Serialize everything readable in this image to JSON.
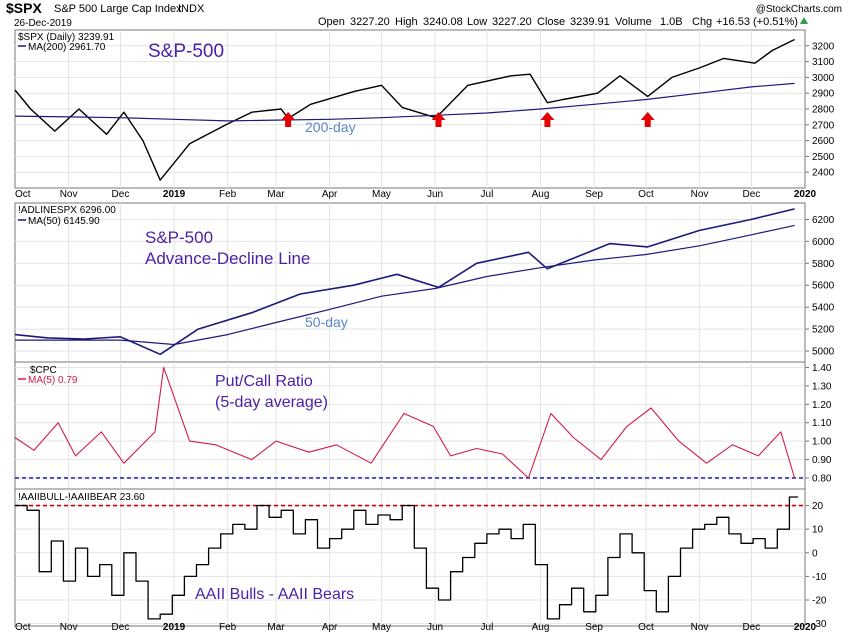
{
  "header": {
    "symbol": "$SPX",
    "name": "S&P 500 Large Cap Index",
    "exchange": "INDX",
    "date": "26-Dec-2019",
    "brand": "@StockCharts.com",
    "open_label": "Open",
    "open": "3227.20",
    "high_label": "High",
    "high": "3240.08",
    "low_label": "Low",
    "low": "3227.20",
    "close_label": "Close",
    "close": "3239.91",
    "volume_label": "Volume",
    "volume": "1.0B",
    "chg_label": "Chg",
    "chg": "+16.53 (+0.51%)"
  },
  "colors": {
    "price_up": "#000000",
    "price_down": "#d10000",
    "ma_line": "#1d1a7a",
    "adline": "#1d1a7a",
    "pc_line": "#d11d46",
    "bulls_line": "#000000",
    "blue_dash": "#2b2bbd",
    "red_dash": "#d10000",
    "arrow": "#e30000",
    "annotation": "#4b1fa8",
    "annotation_small": "#5b86c6",
    "grid": "#e4e4e4",
    "up_triangle": "#2e9e4e"
  },
  "x_axis": {
    "months": [
      "Oct",
      "Nov",
      "Dec",
      "2019",
      "Feb",
      "Mar",
      "Apr",
      "May",
      "Jun",
      "Jul",
      "Aug",
      "Sep",
      "Oct",
      "Nov",
      "Dec",
      "2020"
    ]
  },
  "chart_data": [
    {
      "type": "line",
      "panel": "price",
      "legend": [
        "$SPX (Daily) 3239.91",
        "MA(200) 2961.70"
      ],
      "annotations": [
        "S&P-500",
        "200-day"
      ],
      "x_range": [
        "2018-10-01",
        "2020-01-01"
      ],
      "ylim": [
        2300,
        3300
      ],
      "yticks": [
        "2400",
        "2500",
        "2600",
        "2700",
        "2800",
        "2900",
        "3000",
        "3100",
        "3200"
      ],
      "series": [
        {
          "key": "price",
          "x": [
            "2018-10-01",
            "2018-10-10",
            "2018-10-24",
            "2018-11-07",
            "2018-11-23",
            "2018-12-03",
            "2018-12-14",
            "2018-12-24",
            "2019-01-10",
            "2019-01-31",
            "2019-02-15",
            "2019-03-04",
            "2019-03-08",
            "2019-03-21",
            "2019-04-15",
            "2019-05-01",
            "2019-05-13",
            "2019-05-31",
            "2019-06-03",
            "2019-06-20",
            "2019-07-15",
            "2019-07-26",
            "2019-08-05",
            "2019-08-14",
            "2019-09-03",
            "2019-09-16",
            "2019-10-02",
            "2019-10-16",
            "2019-11-01",
            "2019-11-15",
            "2019-12-03",
            "2019-12-13",
            "2019-12-26"
          ],
          "y": [
            2920,
            2800,
            2660,
            2800,
            2640,
            2780,
            2600,
            2350,
            2580,
            2700,
            2780,
            2800,
            2740,
            2830,
            2910,
            2950,
            2810,
            2750,
            2760,
            2950,
            3010,
            3020,
            2840,
            2860,
            2900,
            3010,
            2880,
            3000,
            3060,
            3120,
            3090,
            3170,
            3240
          ]
        },
        {
          "key": "ma",
          "x": [
            "2018-10-01",
            "2018-11-01",
            "2018-12-01",
            "2019-01-01",
            "2019-02-01",
            "2019-03-01",
            "2019-04-01",
            "2019-05-01",
            "2019-06-01",
            "2019-07-01",
            "2019-08-01",
            "2019-09-01",
            "2019-10-01",
            "2019-11-01",
            "2019-12-01",
            "2019-12-26"
          ],
          "y": [
            2755,
            2750,
            2745,
            2735,
            2725,
            2730,
            2735,
            2745,
            2760,
            2775,
            2800,
            2830,
            2860,
            2900,
            2940,
            2962
          ]
        }
      ],
      "arrows": [
        "2019-03-08",
        "2019-06-03",
        "2019-08-05",
        "2019-10-02"
      ]
    },
    {
      "type": "line",
      "panel": "adline",
      "legend": [
        "!ADLINESPX 6296.00",
        "MA(50) 6145.90"
      ],
      "annotations": [
        "S&P-500",
        "Advance-Decline Line",
        "50-day"
      ],
      "x_range": [
        "2018-10-01",
        "2020-01-01"
      ],
      "ylim": [
        4900,
        6350
      ],
      "yticks": [
        "5000",
        "5200",
        "5400",
        "5600",
        "5800",
        "6000",
        "6200"
      ],
      "series": [
        {
          "key": "adline",
          "x": [
            "2018-10-01",
            "2018-10-20",
            "2018-11-10",
            "2018-12-01",
            "2018-12-24",
            "2019-01-15",
            "2019-02-15",
            "2019-03-15",
            "2019-04-15",
            "2019-05-10",
            "2019-06-03",
            "2019-06-25",
            "2019-07-25",
            "2019-08-05",
            "2019-09-10",
            "2019-10-02",
            "2019-11-01",
            "2019-12-01",
            "2019-12-26"
          ],
          "y": [
            5150,
            5120,
            5110,
            5130,
            4970,
            5200,
            5350,
            5520,
            5600,
            5700,
            5580,
            5800,
            5900,
            5750,
            5980,
            5950,
            6100,
            6200,
            6296
          ]
        },
        {
          "key": "ma",
          "x": [
            "2018-10-01",
            "2018-12-01",
            "2019-01-01",
            "2019-02-01",
            "2019-03-01",
            "2019-04-01",
            "2019-05-01",
            "2019-06-01",
            "2019-07-01",
            "2019-08-01",
            "2019-09-01",
            "2019-10-01",
            "2019-11-01",
            "2019-12-01",
            "2019-12-26"
          ],
          "y": [
            5100,
            5100,
            5060,
            5150,
            5260,
            5380,
            5500,
            5570,
            5680,
            5760,
            5830,
            5880,
            5960,
            6060,
            6146
          ]
        }
      ]
    },
    {
      "type": "line",
      "panel": "putcall",
      "legend": [
        "$CPC",
        "MA(5) 0.79"
      ],
      "annotations": [
        "Put/Call Ratio",
        "(5-day average)"
      ],
      "x_range": [
        "2018-10-01",
        "2020-01-01"
      ],
      "ylim": [
        0.74,
        1.43
      ],
      "yticks": [
        "0.80",
        "0.90",
        "1.00",
        "1.10",
        "1.20",
        "1.30",
        "1.40"
      ],
      "reference_line": 0.8,
      "series": [
        {
          "key": "pc",
          "x": [
            "2018-10-01",
            "2018-10-12",
            "2018-10-26",
            "2018-11-05",
            "2018-11-20",
            "2018-12-03",
            "2018-12-21",
            "2018-12-26",
            "2019-01-10",
            "2019-01-25",
            "2019-02-15",
            "2019-03-01",
            "2019-03-20",
            "2019-04-05",
            "2019-04-25",
            "2019-05-14",
            "2019-05-31",
            "2019-06-10",
            "2019-06-25",
            "2019-07-10",
            "2019-07-25",
            "2019-08-07",
            "2019-08-20",
            "2019-09-05",
            "2019-09-20",
            "2019-10-04",
            "2019-10-20",
            "2019-11-05",
            "2019-11-20",
            "2019-12-05",
            "2019-12-18",
            "2019-12-26"
          ],
          "y": [
            1.02,
            0.95,
            1.1,
            0.92,
            1.05,
            0.88,
            1.05,
            1.4,
            1.0,
            0.98,
            0.9,
            1.0,
            0.94,
            0.98,
            0.88,
            1.15,
            1.08,
            0.92,
            0.96,
            0.93,
            0.8,
            1.15,
            1.02,
            0.9,
            1.08,
            1.18,
            1.0,
            0.88,
            0.98,
            0.92,
            1.05,
            0.8
          ]
        }
      ]
    },
    {
      "type": "line",
      "panel": "aaii",
      "legend": [
        "!AAIIBULL-!AAIIBEAR 23.60"
      ],
      "annotations": [
        "AAII Bulls - AAII Bears"
      ],
      "x_range": [
        "2018-10-01",
        "2020-01-01"
      ],
      "ylim": [
        -31,
        27
      ],
      "yticks": [
        "-30",
        "-20",
        "-10",
        "0",
        "10",
        "20"
      ],
      "reference_line": 20,
      "series": [
        {
          "key": "aaii",
          "x": [
            "2018-10-01",
            "2018-10-08",
            "2018-10-15",
            "2018-10-22",
            "2018-10-29",
            "2018-11-05",
            "2018-11-12",
            "2018-11-19",
            "2018-11-26",
            "2018-12-03",
            "2018-12-10",
            "2018-12-17",
            "2018-12-24",
            "2018-12-31",
            "2019-01-07",
            "2019-01-14",
            "2019-01-21",
            "2019-01-28",
            "2019-02-04",
            "2019-02-11",
            "2019-02-18",
            "2019-02-25",
            "2019-03-04",
            "2019-03-11",
            "2019-03-18",
            "2019-03-25",
            "2019-04-01",
            "2019-04-08",
            "2019-04-15",
            "2019-04-22",
            "2019-04-29",
            "2019-05-06",
            "2019-05-13",
            "2019-05-20",
            "2019-05-27",
            "2019-06-03",
            "2019-06-10",
            "2019-06-17",
            "2019-06-24",
            "2019-07-01",
            "2019-07-08",
            "2019-07-15",
            "2019-07-22",
            "2019-07-29",
            "2019-08-05",
            "2019-08-12",
            "2019-08-19",
            "2019-08-26",
            "2019-09-02",
            "2019-09-09",
            "2019-09-16",
            "2019-09-23",
            "2019-09-30",
            "2019-10-07",
            "2019-10-14",
            "2019-10-21",
            "2019-10-28",
            "2019-11-04",
            "2019-11-11",
            "2019-11-18",
            "2019-11-25",
            "2019-12-02",
            "2019-12-09",
            "2019-12-16",
            "2019-12-23"
          ],
          "y": [
            20,
            18,
            -8,
            5,
            -12,
            2,
            -10,
            -5,
            -18,
            0,
            -12,
            -28,
            -26,
            -18,
            -10,
            -5,
            2,
            8,
            12,
            10,
            20,
            15,
            18,
            8,
            14,
            2,
            6,
            10,
            18,
            12,
            16,
            14,
            20,
            2,
            -15,
            -20,
            -8,
            -2,
            4,
            8,
            10,
            6,
            12,
            -5,
            -28,
            -22,
            -15,
            -25,
            -18,
            -2,
            8,
            0,
            -16,
            -25,
            -10,
            2,
            10,
            12,
            15,
            8,
            4,
            6,
            2,
            10,
            23.6
          ]
        }
      ]
    }
  ]
}
